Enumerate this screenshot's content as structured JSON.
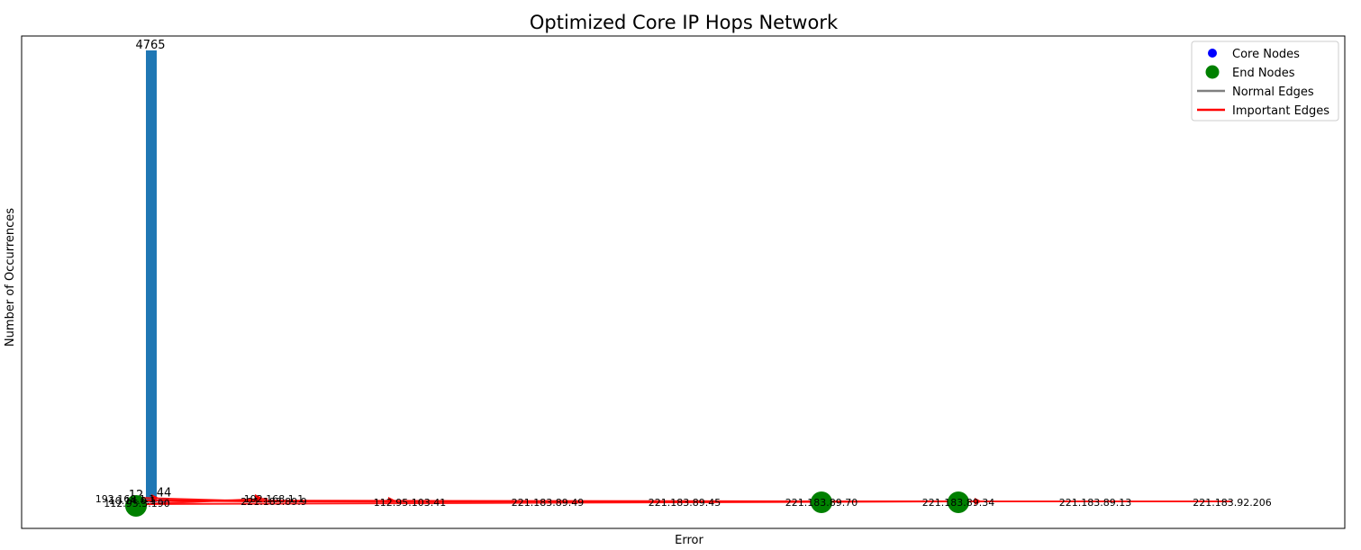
{
  "chart_data": {
    "type": "network",
    "title": "Optimized Core IP Hops Network",
    "xlabel": "Error",
    "ylabel": "Number of Occurrences",
    "bars": [
      {
        "label": "4765",
        "value": 4765
      },
      {
        "label": "44",
        "value": 44
      },
      {
        "label": "12",
        "value": 12
      }
    ],
    "nodes": [
      {
        "label": "192.168.1.1",
        "type": "core"
      },
      {
        "label": "10.14.0.1",
        "type": "core"
      },
      {
        "label": "112.95.3.190",
        "type": "core"
      },
      {
        "label": "221.183.89.9",
        "type": "core"
      },
      {
        "label": "192.168.1.1",
        "type": "core"
      },
      {
        "label": "112.95.103.41",
        "type": "core"
      },
      {
        "label": "221.183.89.49",
        "type": "core"
      },
      {
        "label": "221.183.89.45",
        "type": "core"
      },
      {
        "label": "221.183.89.70",
        "type": "end"
      },
      {
        "label": "221.183.89.34",
        "type": "end"
      },
      {
        "label": "221.183.89.13",
        "type": "core"
      },
      {
        "label": "221.183.92.206",
        "type": "core"
      }
    ],
    "legend": {
      "position": "top-right",
      "entries": [
        "Core Nodes",
        "End Nodes",
        "Normal Edges",
        "Important Edges"
      ]
    },
    "colors": {
      "bars": "#1f77b4",
      "core_nodes": "#0000ff",
      "end_nodes": "#008000",
      "normal_edges": "#808080",
      "important_edges": "#ff0000"
    }
  }
}
